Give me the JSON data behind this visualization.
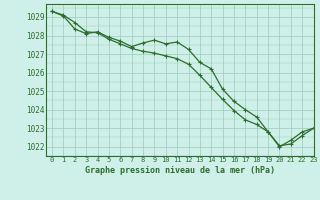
{
  "title": "Graphe pression niveau de la mer (hPa)",
  "bg_color": "#cff0e8",
  "grid_color": "#99ccbb",
  "line_color": "#2d6e2d",
  "marker_color": "#2d6e2d",
  "xlim": [
    -0.5,
    23
  ],
  "ylim": [
    1021.5,
    1029.7
  ],
  "xticks": [
    0,
    1,
    2,
    3,
    4,
    5,
    6,
    7,
    8,
    9,
    10,
    11,
    12,
    13,
    14,
    15,
    16,
    17,
    18,
    19,
    20,
    21,
    22,
    23
  ],
  "yticks": [
    1022,
    1023,
    1024,
    1025,
    1026,
    1027,
    1028,
    1029
  ],
  "series1_x": [
    0,
    1,
    2,
    3,
    4,
    5,
    6,
    7,
    8,
    9,
    10,
    11,
    12,
    13,
    14,
    15,
    16,
    17,
    18,
    19,
    20,
    21,
    22,
    23
  ],
  "series1_y": [
    1029.3,
    1029.1,
    1028.7,
    1028.2,
    1028.15,
    1027.8,
    1027.55,
    1027.3,
    1027.15,
    1027.05,
    1026.9,
    1026.75,
    1026.45,
    1025.85,
    1025.2,
    1024.55,
    1023.95,
    1023.45,
    1023.2,
    1022.8,
    1022.05,
    1022.15,
    1022.6,
    1023.0
  ],
  "series2_x": [
    0,
    1,
    2,
    3,
    4,
    5,
    6,
    7,
    8,
    9,
    10,
    11,
    12,
    13,
    14,
    15,
    16,
    17,
    18,
    19,
    20,
    21,
    22,
    23
  ],
  "series2_y": [
    1029.3,
    1029.05,
    1028.35,
    1028.1,
    1028.2,
    1027.9,
    1027.7,
    1027.4,
    1027.6,
    1027.75,
    1027.55,
    1027.65,
    1027.25,
    1026.55,
    1026.2,
    1025.1,
    1024.45,
    1024.0,
    1023.6,
    1022.8,
    1022.0,
    1022.35,
    1022.8,
    1023.0
  ],
  "xlabel_fontsize": 6.0,
  "ytick_fontsize": 5.5,
  "xtick_fontsize": 5.0
}
